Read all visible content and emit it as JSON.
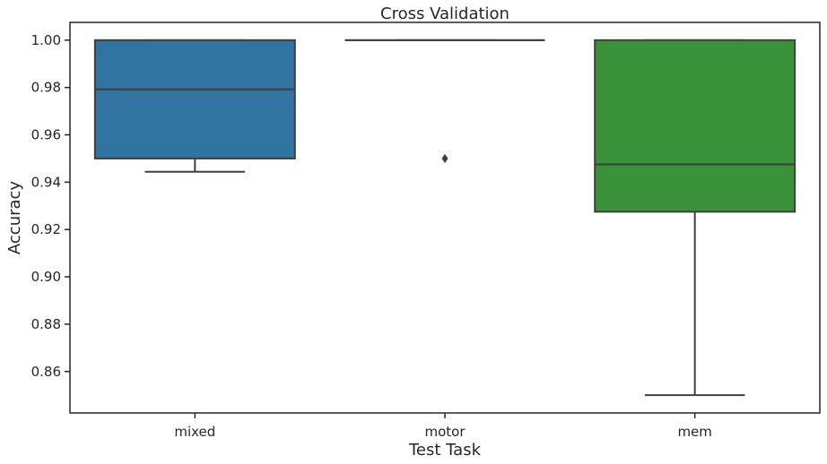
{
  "chart_data": {
    "type": "box",
    "title": "Cross Validation",
    "xlabel": "Test Task",
    "ylabel": "Accuracy",
    "ylim": [
      0.8425,
      1.0075
    ],
    "yticks": [
      0.86,
      0.88,
      0.9,
      0.92,
      0.94,
      0.96,
      0.98,
      1.0
    ],
    "ytick_labels": [
      "0.86",
      "0.88",
      "0.90",
      "0.92",
      "0.94",
      "0.96",
      "0.98",
      "1.00"
    ],
    "categories": [
      "mixed",
      "motor",
      "mem"
    ],
    "boxes": [
      {
        "category": "mixed",
        "whisker_low": 0.9444,
        "q1": 0.95,
        "median": 0.9792,
        "q3": 1.0,
        "whisker_high": 1.0,
        "outliers": [],
        "color": "#3274a1"
      },
      {
        "category": "motor",
        "whisker_low": 1.0,
        "q1": 1.0,
        "median": 1.0,
        "q3": 1.0,
        "whisker_high": 1.0,
        "outliers": [
          0.95
        ],
        "color": "#e1812c"
      },
      {
        "category": "mem",
        "whisker_low": 0.85,
        "q1": 0.9275,
        "median": 0.9475,
        "q3": 1.0,
        "whisker_high": 1.0,
        "outliers": [],
        "color": "#3a923a"
      }
    ],
    "grid": false,
    "legend": "none"
  }
}
